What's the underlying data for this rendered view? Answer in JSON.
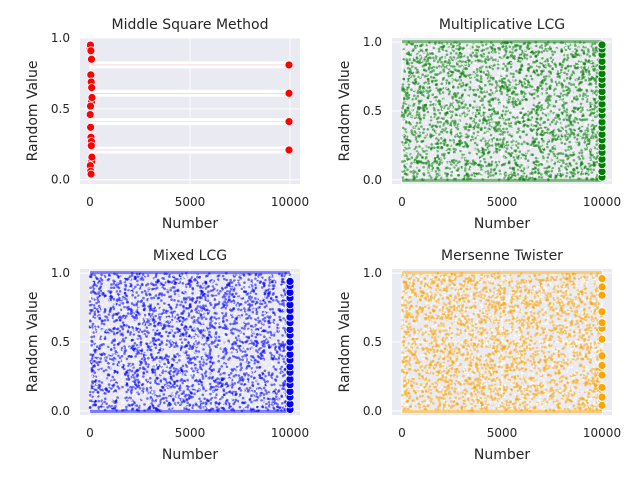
{
  "chart_data": [
    {
      "type": "scatter",
      "title": "Middle Square Method",
      "xlabel": "Number",
      "ylabel": "Random Value",
      "xlim": [
        -500,
        10500
      ],
      "ylim": [
        -0.03,
        1.0
      ],
      "xticks": [
        "0",
        "5000",
        "10000"
      ],
      "xtick_values": [
        0,
        5000,
        10000
      ],
      "yticks": [
        "0.0",
        "0.5",
        "1.0"
      ],
      "ytick_values": [
        0.0,
        0.5,
        1.0
      ],
      "color": "#ff0000",
      "grid": true,
      "pattern": "middle-square: ~50 early values then period-4 cycle 0.21, 0.41, 0.61, 0.81 repeating to n=10000",
      "points": [
        {
          "x": 0,
          "y": 0.93
        },
        {
          "x": 20,
          "y": 0.95
        },
        {
          "x": 40,
          "y": 0.74
        },
        {
          "x": 60,
          "y": 0.69
        },
        {
          "x": 80,
          "y": 0.55
        },
        {
          "x": 100,
          "y": 0.58
        },
        {
          "x": 10,
          "y": 0.46
        },
        {
          "x": 30,
          "y": 0.37
        },
        {
          "x": 50,
          "y": 0.3
        },
        {
          "x": 70,
          "y": 0.27
        },
        {
          "x": 90,
          "y": 0.13
        },
        {
          "x": 15,
          "y": 0.1
        },
        {
          "x": 35,
          "y": 0.06
        },
        {
          "x": 55,
          "y": 0.04
        },
        {
          "x": 75,
          "y": 0.85
        },
        {
          "x": 95,
          "y": 0.16
        },
        {
          "x": 25,
          "y": 0.52
        },
        {
          "x": 65,
          "y": 0.24
        },
        {
          "x": 85,
          "y": 0.65
        },
        {
          "x": 45,
          "y": 0.91
        },
        {
          "x": 9950,
          "y": 0.81
        },
        {
          "x": 9950,
          "y": 0.61
        },
        {
          "x": 9950,
          "y": 0.41
        },
        {
          "x": 9950,
          "y": 0.21
        }
      ],
      "cycle_values": [
        0.21,
        0.41,
        0.61,
        0.81
      ]
    },
    {
      "type": "scatter",
      "title": "Multiplicative LCG",
      "xlabel": "Number",
      "ylabel": "Random Value",
      "xlim": [
        -500,
        10500
      ],
      "ylim": [
        -0.03,
        1.03
      ],
      "xticks": [
        "0",
        "5000",
        "10000"
      ],
      "xtick_values": [
        0,
        5000,
        10000
      ],
      "yticks": [
        "0.0",
        "0.5",
        "1.0"
      ],
      "ytick_values": [
        0.0,
        0.5,
        1.0
      ],
      "color": "#008000",
      "grid": true,
      "n_points": 10000,
      "distribution": "uniform [0, 1)",
      "edge_points": [
        0.02,
        0.06,
        0.11,
        0.15,
        0.2,
        0.24,
        0.29,
        0.33,
        0.38,
        0.42,
        0.47,
        0.51,
        0.55,
        0.6,
        0.64,
        0.69,
        0.73,
        0.77,
        0.82,
        0.86,
        0.91,
        0.95,
        0.98
      ]
    },
    {
      "type": "scatter",
      "title": "Mixed LCG",
      "xlabel": "Number",
      "ylabel": "Random Value",
      "xlim": [
        -500,
        10500
      ],
      "ylim": [
        -0.03,
        1.03
      ],
      "xticks": [
        "0",
        "5000",
        "10000"
      ],
      "xtick_values": [
        0,
        5000,
        10000
      ],
      "yticks": [
        "0.0",
        "0.5",
        "1.0"
      ],
      "ytick_values": [
        0.0,
        0.5,
        1.0
      ],
      "color": "#0000ff",
      "grid": true,
      "n_points": 10000,
      "distribution": "uniform [0, 1)",
      "edge_points": [
        0.01,
        0.05,
        0.1,
        0.14,
        0.19,
        0.23,
        0.28,
        0.32,
        0.37,
        0.41,
        0.46,
        0.5,
        0.55,
        0.59,
        0.64,
        0.68,
        0.73,
        0.77,
        0.82,
        0.86,
        0.91,
        0.94
      ]
    },
    {
      "type": "scatter",
      "title": "Mersenne Twister",
      "xlabel": "Number",
      "ylabel": "Random Value",
      "xlim": [
        -500,
        10500
      ],
      "ylim": [
        -0.03,
        1.03
      ],
      "xticks": [
        "0",
        "5000",
        "10000"
      ],
      "xtick_values": [
        0,
        5000,
        10000
      ],
      "yticks": [
        "0.0",
        "0.5",
        "1.0"
      ],
      "ytick_values": [
        0.0,
        0.5,
        1.0
      ],
      "color": "#ffa500",
      "grid": true,
      "n_points": 10000,
      "distribution": "uniform [0, 1)",
      "edge_points": [
        0.04,
        0.1,
        0.17,
        0.26,
        0.33,
        0.4,
        0.52,
        0.6,
        0.64,
        0.72,
        0.84,
        0.9,
        0.96
      ]
    }
  ]
}
